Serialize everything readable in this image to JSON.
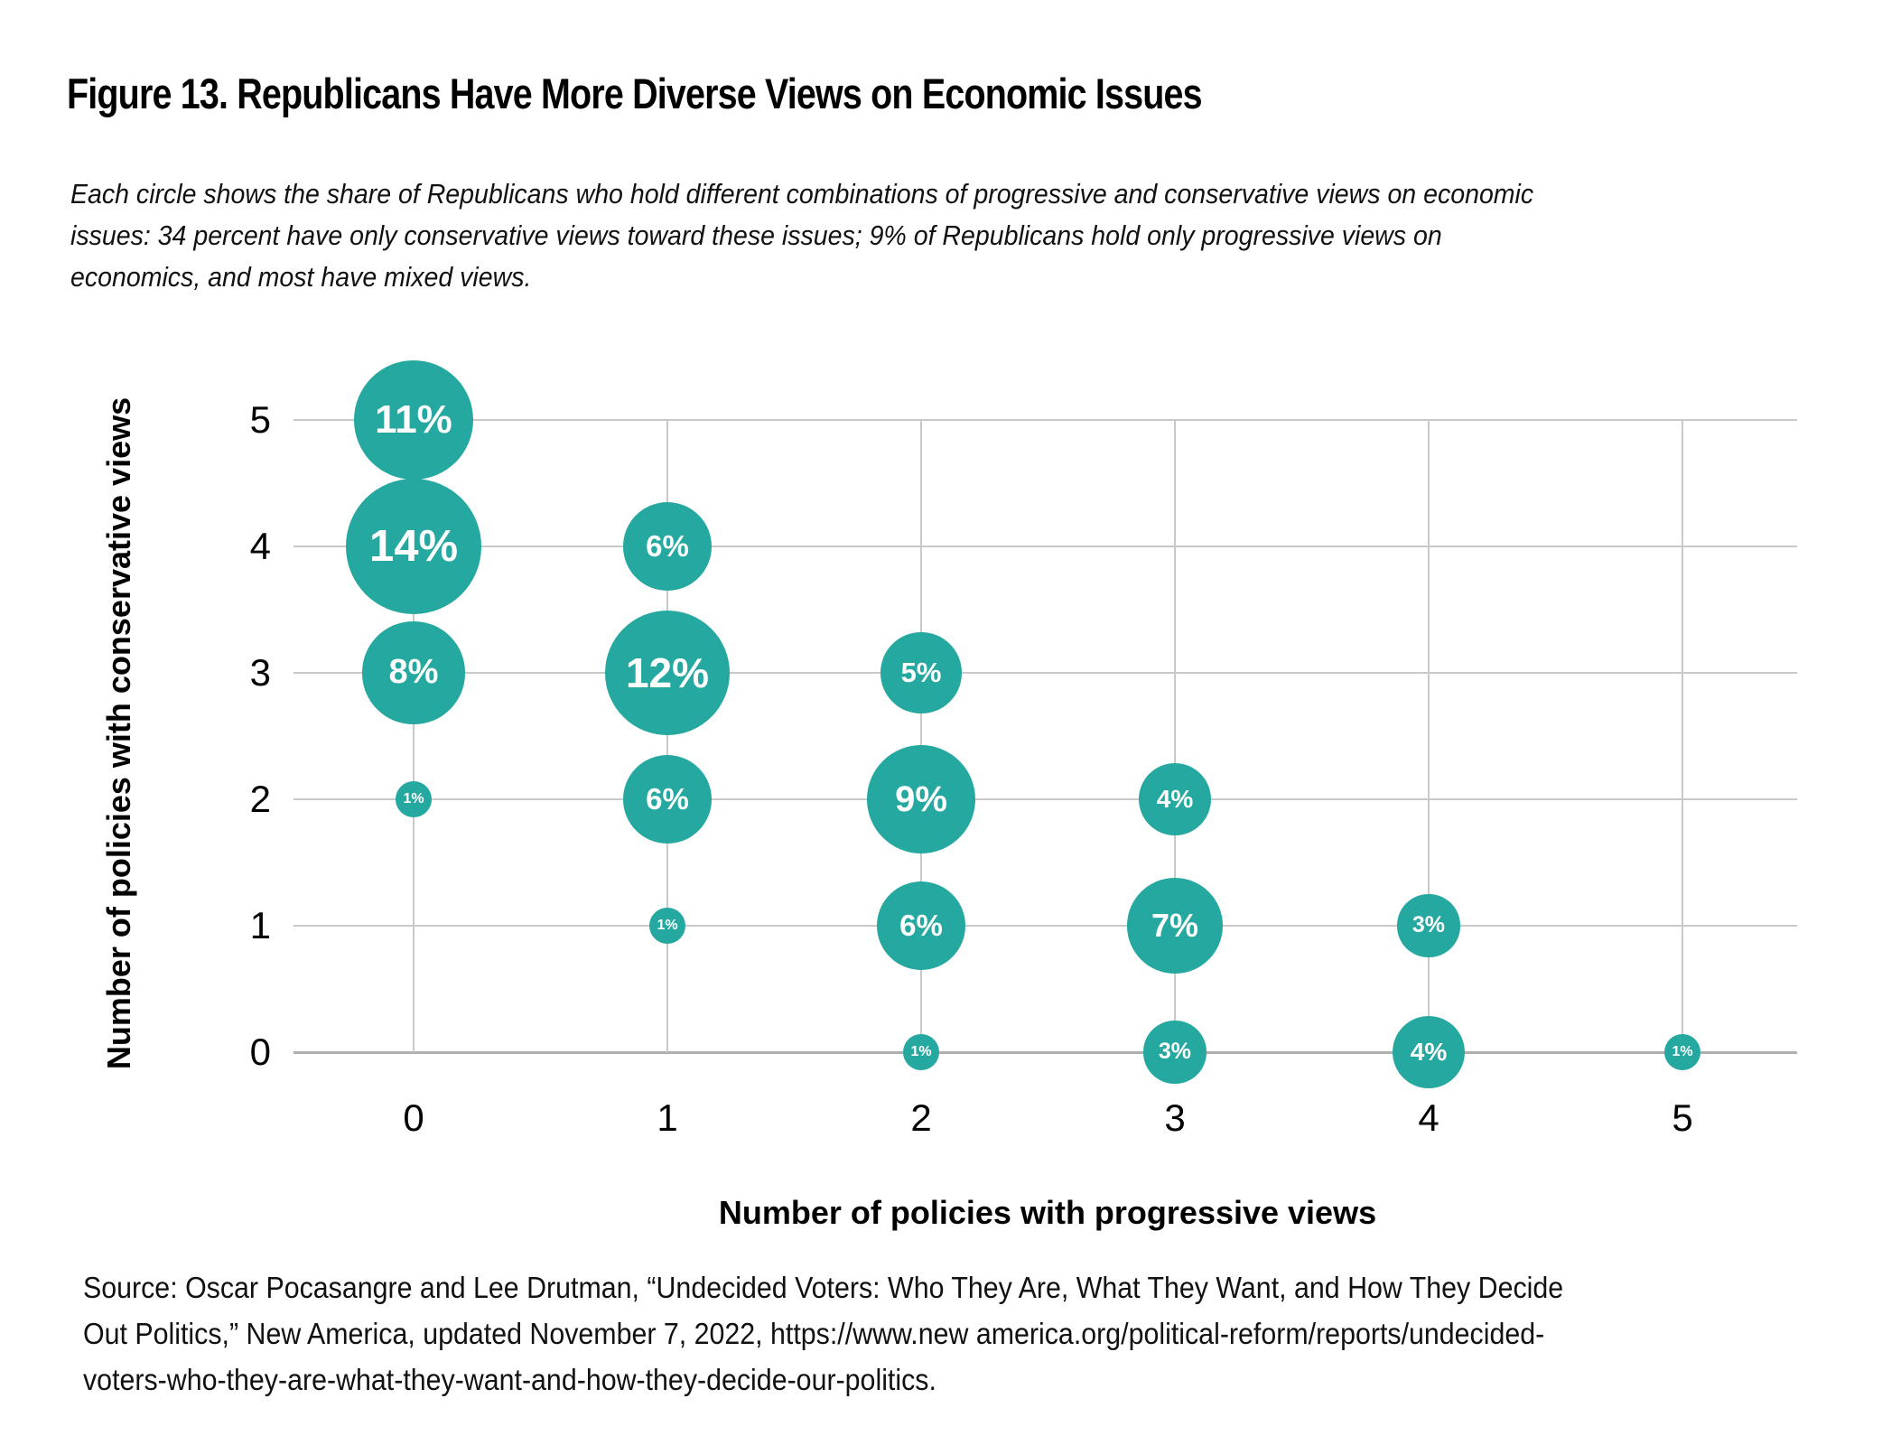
{
  "figure": {
    "title": "Figure 13. Republicans Have More Diverse Views on Economic Issues",
    "subtitle_lines": [
      "Each circle shows the share of Republicans who hold different combinations of progressive and conservative views on economic",
      "issues: 34 percent have only conservative views toward these issues; 9% of Republicans hold only progressive views on",
      "economics, and most have mixed views."
    ]
  },
  "chart_data": {
    "type": "scatter",
    "subtype": "bubble",
    "title": "Figure 13. Republicans Have More Diverse Views on Economic Issues",
    "xlabel": "Number of policies with progressive views",
    "ylabel": "Number of policies with conservative views",
    "x_ticks": [
      "0",
      "1",
      "2",
      "3",
      "4",
      "5"
    ],
    "y_ticks": [
      "0",
      "1",
      "2",
      "3",
      "4",
      "5"
    ],
    "xlim": [
      -0.45,
      5.45
    ],
    "ylim": [
      0,
      5
    ],
    "grid": true,
    "legend": false,
    "bubble_color": "#24A8A0",
    "bubble_label_color": "#ffffff",
    "size_rule": "circle area proportional to percent value",
    "points": [
      {
        "x": 0,
        "y": 5,
        "value": 11,
        "label": "11%"
      },
      {
        "x": 0,
        "y": 4,
        "value": 14,
        "label": "14%"
      },
      {
        "x": 0,
        "y": 3,
        "value": 8,
        "label": "8%"
      },
      {
        "x": 0,
        "y": 2,
        "value": 1,
        "label": "1%"
      },
      {
        "x": 1,
        "y": 4,
        "value": 6,
        "label": "6%"
      },
      {
        "x": 1,
        "y": 3,
        "value": 12,
        "label": "12%"
      },
      {
        "x": 1,
        "y": 2,
        "value": 6,
        "label": "6%"
      },
      {
        "x": 1,
        "y": 1,
        "value": 1,
        "label": "1%"
      },
      {
        "x": 2,
        "y": 3,
        "value": 5,
        "label": "5%"
      },
      {
        "x": 2,
        "y": 2,
        "value": 9,
        "label": "9%"
      },
      {
        "x": 2,
        "y": 1,
        "value": 6,
        "label": "6%"
      },
      {
        "x": 2,
        "y": 0,
        "value": 1,
        "label": "1%"
      },
      {
        "x": 3,
        "y": 2,
        "value": 4,
        "label": "4%"
      },
      {
        "x": 3,
        "y": 1,
        "value": 7,
        "label": "7%"
      },
      {
        "x": 3,
        "y": 0,
        "value": 3,
        "label": "3%"
      },
      {
        "x": 4,
        "y": 1,
        "value": 3,
        "label": "3%"
      },
      {
        "x": 4,
        "y": 0,
        "value": 4,
        "label": "4%"
      },
      {
        "x": 5,
        "y": 0,
        "value": 1,
        "label": "1%"
      }
    ]
  },
  "source": {
    "lines": [
      "Source: Oscar Pocasangre and Lee Drutman, “Undecided Voters: Who They Are, What They Want, and How They Decide",
      "Out Politics,” New America, updated November 7, 2022, https://www.new america.org/political-reform/reports/undecided-",
      "voters-who-they-are-what-they-want-and-how-they-decide-our-politics."
    ]
  }
}
